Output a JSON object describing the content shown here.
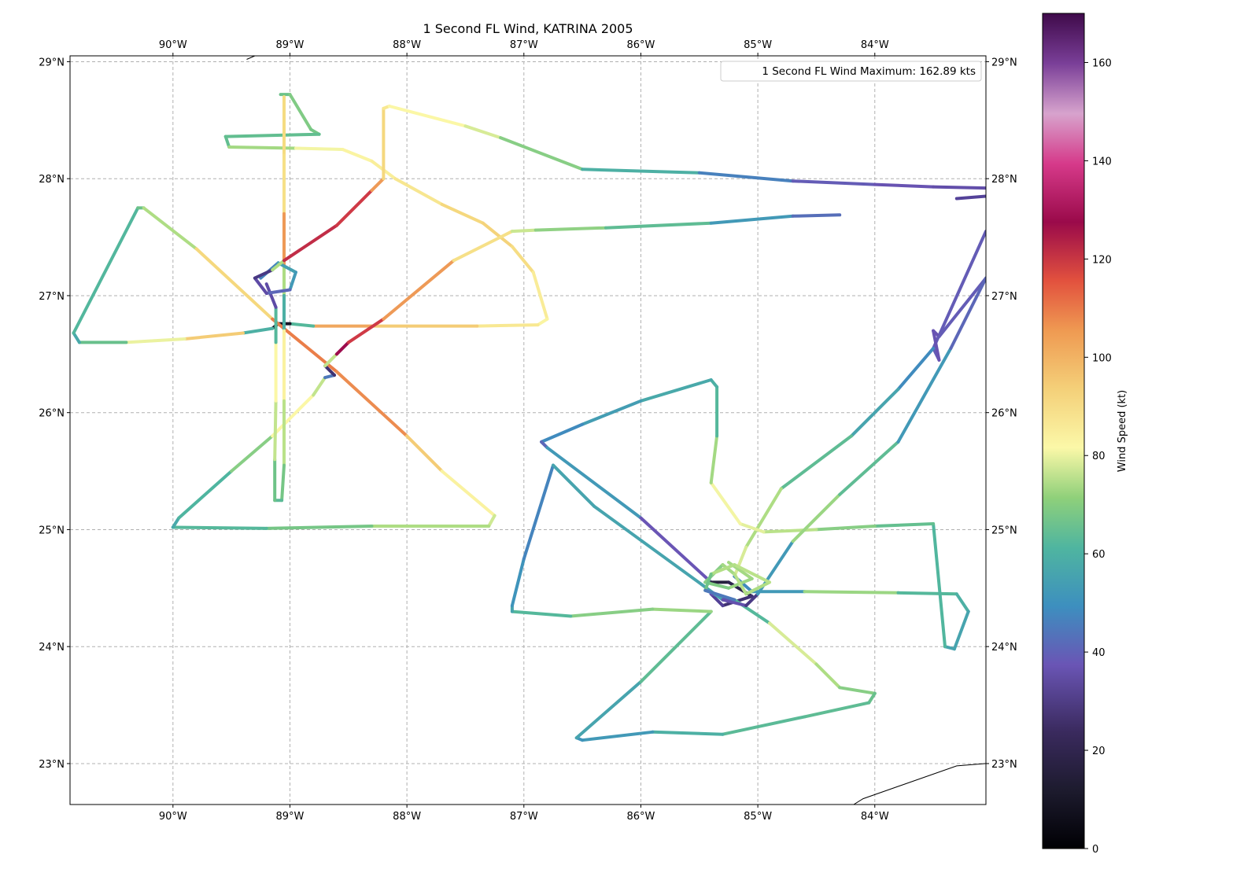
{
  "title": "1 Second FL Wind, KATRINA 2005",
  "legend": {
    "text": "1 Second FL Wind Maximum: 162.89 kts"
  },
  "colorbar": {
    "label": "Wind Speed (kt)",
    "min": 0,
    "max": 170,
    "ticks": [
      "0",
      "20",
      "40",
      "60",
      "80",
      "100",
      "120",
      "140",
      "160"
    ]
  },
  "map": {
    "lon_range": [
      -90.88,
      -83.05
    ],
    "lat_range": [
      22.65,
      29.05
    ],
    "lon_ticks": [
      {
        "value": -90,
        "label": "90°W"
      },
      {
        "value": -89,
        "label": "89°W"
      },
      {
        "value": -88,
        "label": "88°W"
      },
      {
        "value": -87,
        "label": "87°W"
      },
      {
        "value": -86,
        "label": "86°W"
      },
      {
        "value": -85,
        "label": "85°W"
      },
      {
        "value": -84,
        "label": "84°W"
      }
    ],
    "lat_ticks": [
      {
        "value": 23,
        "label": "23°N"
      },
      {
        "value": 24,
        "label": "24°N"
      },
      {
        "value": 25,
        "label": "25°N"
      },
      {
        "value": 26,
        "label": "26°N"
      },
      {
        "value": 27,
        "label": "27°N"
      },
      {
        "value": 28,
        "label": "28°N"
      },
      {
        "value": 29,
        "label": "29°N"
      }
    ],
    "grid": true,
    "coastlines": [
      [
        [
          -89.37,
          29.02
        ],
        [
          -89.3,
          29.05
        ]
      ],
      [
        [
          -84.18,
          22.65
        ],
        [
          -84.1,
          22.7
        ],
        [
          -83.3,
          22.98
        ],
        [
          -83.05,
          23.0
        ]
      ]
    ]
  },
  "chart_data": {
    "type": "scatter",
    "title": "1 Second FL Wind, KATRINA 2005",
    "xlabel": "",
    "ylabel": "",
    "xlim": [
      -90.88,
      -83.05
    ],
    "ylim": [
      22.65,
      29.05
    ],
    "grid": true,
    "legend_position": "top-right",
    "series": [
      {
        "name": "1 Second FL Wind Maximum: 162.89 kts",
        "tracks": [
          {
            "points": [
              [
                -89.08,
                28.72,
                62
              ],
              [
                -89.0,
                28.72,
                65
              ],
              [
                -88.82,
                28.42,
                68
              ],
              [
                -88.75,
                28.38,
                62
              ],
              [
                -89.55,
                28.36,
                60
              ],
              [
                -89.52,
                28.27,
                62
              ],
              [
                -88.95,
                28.26,
                80
              ],
              [
                -88.55,
                28.25,
                82
              ],
              [
                -88.3,
                28.15,
                85
              ],
              [
                -88.1,
                28.0,
                86
              ],
              [
                -87.7,
                27.78,
                90
              ],
              [
                -87.35,
                27.62,
                95
              ],
              [
                -87.1,
                27.42,
                92
              ],
              [
                -86.92,
                27.2,
                90
              ],
              [
                -86.8,
                26.8,
                82
              ],
              [
                -86.88,
                26.75,
                85
              ],
              [
                -87.4,
                26.74,
                90
              ],
              [
                -88.3,
                26.74,
                100
              ],
              [
                -88.8,
                26.74,
                105
              ],
              [
                -89.0,
                26.76,
                10
              ],
              [
                -89.1,
                26.76,
                5
              ],
              [
                -89.15,
                26.72,
                10
              ],
              [
                -89.4,
                26.68,
                100
              ],
              [
                -89.9,
                26.63,
                90
              ],
              [
                -90.4,
                26.6,
                70
              ],
              [
                -90.8,
                26.6,
                55
              ],
              [
                -90.85,
                26.68,
                52
              ],
              [
                -90.3,
                27.75,
                62
              ],
              [
                -90.25,
                27.75,
                65
              ],
              [
                -89.8,
                27.4,
                80
              ],
              [
                -89.15,
                26.8,
                105
              ],
              [
                -88.6,
                26.35,
                115
              ],
              [
                -88.0,
                25.8,
                100
              ],
              [
                -87.7,
                25.5,
                90
              ],
              [
                -87.25,
                25.12,
                78
              ],
              [
                -87.3,
                25.03,
                75
              ],
              [
                -88.3,
                25.03,
                70
              ],
              [
                -89.2,
                25.01,
                60
              ],
              [
                -90.0,
                25.02,
                55
              ],
              [
                -89.95,
                25.1,
                52
              ],
              [
                -89.5,
                25.5,
                60
              ],
              [
                -89.15,
                25.8,
                75
              ],
              [
                -88.8,
                26.15,
                90
              ],
              [
                -88.7,
                26.3,
                60
              ],
              [
                -88.62,
                26.32,
                30
              ],
              [
                -88.7,
                26.4,
                20
              ],
              [
                -88.6,
                26.5,
                130
              ],
              [
                -88.5,
                26.6,
                135
              ],
              [
                -88.2,
                26.8,
                110
              ],
              [
                -87.6,
                27.3,
                100
              ],
              [
                -87.1,
                27.55,
                80
              ],
              [
                -86.9,
                27.56,
                72
              ],
              [
                -86.3,
                27.58,
                65
              ],
              [
                -85.4,
                27.62,
                55
              ],
              [
                -84.7,
                27.68,
                45
              ],
              [
                -84.3,
                27.69,
                42
              ]
            ]
          },
          {
            "points": [
              [
                -89.05,
                28.7,
                88
              ],
              [
                -89.05,
                28.2,
                95
              ],
              [
                -89.05,
                27.7,
                85
              ],
              [
                -89.05,
                27.25,
                125
              ],
              [
                -89.05,
                27.0,
                20
              ],
              [
                -89.05,
                26.7,
                90
              ],
              [
                -89.05,
                26.1,
                78
              ],
              [
                -89.05,
                25.55,
                70
              ],
              [
                -89.07,
                25.25,
                60
              ],
              [
                -89.13,
                25.25,
                58
              ],
              [
                -89.13,
                25.6,
                70
              ],
              [
                -89.12,
                26.1,
                80
              ],
              [
                -89.12,
                26.6,
                85
              ],
              [
                -89.12,
                26.9,
                30
              ],
              [
                -89.2,
                27.1,
                40
              ]
            ]
          },
          {
            "points": [
              [
                -89.25,
                27.15,
                45
              ],
              [
                -89.1,
                27.28,
                48
              ],
              [
                -88.95,
                27.2,
                55
              ],
              [
                -89.0,
                27.05,
                45
              ],
              [
                -89.2,
                27.02,
                40
              ],
              [
                -89.3,
                27.15,
                30
              ],
              [
                -89.15,
                27.22,
                25
              ],
              [
                -89.05,
                27.3,
                120
              ],
              [
                -88.6,
                27.6,
                130
              ],
              [
                -88.3,
                27.9,
                115
              ],
              [
                -88.2,
                28.0,
                95
              ],
              [
                -88.2,
                28.6,
                90
              ],
              [
                -88.15,
                28.62,
                85
              ],
              [
                -87.5,
                28.45,
                80
              ],
              [
                -87.2,
                28.35,
                75
              ],
              [
                -86.5,
                28.08,
                60
              ],
              [
                -85.5,
                28.05,
                50
              ],
              [
                -84.7,
                27.98,
                42
              ],
              [
                -84.0,
                27.95,
                40
              ],
              [
                -83.5,
                27.93,
                38
              ],
              [
                -83.05,
                27.92,
                35
              ]
            ]
          },
          {
            "points": [
              [
                -83.3,
                27.83,
                30
              ],
              [
                -83.05,
                27.85,
                32
              ]
            ]
          },
          {
            "points": [
              [
                -83.05,
                27.55,
                40
              ],
              [
                -83.5,
                26.55,
                42
              ],
              [
                -83.45,
                26.45,
                40
              ],
              [
                -83.5,
                26.7,
                38
              ],
              [
                -83.45,
                26.65,
                40
              ],
              [
                -83.05,
                27.15,
                42
              ]
            ]
          },
          {
            "points": [
              [
                -83.5,
                26.55,
                45
              ],
              [
                -83.8,
                26.2,
                50
              ],
              [
                -84.2,
                25.8,
                55
              ],
              [
                -84.8,
                25.35,
                65
              ],
              [
                -85.1,
                24.85,
                80
              ],
              [
                -85.2,
                24.6,
                75
              ],
              [
                -85.05,
                24.47,
                20
              ],
              [
                -84.6,
                24.47,
                80
              ],
              [
                -83.8,
                24.46,
                60
              ],
              [
                -83.3,
                24.45,
                55
              ],
              [
                -83.2,
                24.3,
                55
              ],
              [
                -83.32,
                23.98,
                50
              ],
              [
                -83.4,
                24.0,
                55
              ],
              [
                -83.5,
                25.05,
                58
              ],
              [
                -84.0,
                25.03,
                65
              ],
              [
                -84.5,
                25.0,
                70
              ],
              [
                -84.95,
                24.98,
                78
              ],
              [
                -85.15,
                25.05,
                80
              ],
              [
                -85.4,
                25.4,
                82
              ],
              [
                -85.35,
                25.8,
                60
              ],
              [
                -85.35,
                26.22,
                55
              ],
              [
                -85.4,
                26.28,
                55
              ],
              [
                -86.0,
                26.1,
                52
              ],
              [
                -86.5,
                25.9,
                50
              ],
              [
                -86.85,
                25.75,
                45
              ],
              [
                -86.8,
                25.7,
                40
              ],
              [
                -86.0,
                25.1,
                60
              ],
              [
                -85.4,
                24.55,
                20
              ],
              [
                -85.25,
                24.55,
                10
              ],
              [
                -85.05,
                24.43,
                30
              ],
              [
                -85.3,
                24.35,
                20
              ],
              [
                -85.4,
                24.45,
                40
              ],
              [
                -85.2,
                24.4,
                35
              ],
              [
                -84.9,
                24.2,
                80
              ],
              [
                -84.5,
                23.85,
                75
              ],
              [
                -84.3,
                23.65,
                70
              ],
              [
                -84.0,
                23.6,
                65
              ],
              [
                -84.05,
                23.52,
                60
              ],
              [
                -84.6,
                23.4,
                60
              ],
              [
                -85.3,
                23.25,
                58
              ],
              [
                -85.9,
                23.27,
                52
              ],
              [
                -86.5,
                23.2,
                48
              ],
              [
                -86.55,
                23.22,
                50
              ],
              [
                -86.0,
                23.7,
                55
              ],
              [
                -85.4,
                24.3,
                65
              ],
              [
                -85.9,
                24.32,
                75
              ],
              [
                -86.6,
                24.26,
                60
              ],
              [
                -87.1,
                24.3,
                55
              ],
              [
                -87.1,
                24.35,
                50
              ],
              [
                -87.0,
                24.75,
                48
              ],
              [
                -86.75,
                25.55,
                45
              ],
              [
                -86.4,
                25.2,
                60
              ],
              [
                -85.3,
                24.4,
                45
              ],
              [
                -85.1,
                24.35,
                30
              ],
              [
                -85.0,
                24.45,
                25
              ],
              [
                -84.7,
                24.9,
                75
              ],
              [
                -84.3,
                25.3,
                65
              ],
              [
                -83.8,
                25.75,
                55
              ],
              [
                -83.35,
                26.55,
                45
              ],
              [
                -83.05,
                27.15,
                40
              ]
            ]
          },
          {
            "points": [
              [
                -85.25,
                24.72,
                70
              ],
              [
                -85.05,
                24.58,
                72
              ],
              [
                -85.25,
                24.5,
                68
              ],
              [
                -85.45,
                24.55,
                65
              ],
              [
                -85.3,
                24.7,
                70
              ],
              [
                -85.2,
                24.62,
                72
              ],
              [
                -85.1,
                24.45,
                75
              ],
              [
                -84.9,
                24.55,
                70
              ],
              [
                -85.2,
                24.7,
                78
              ],
              [
                -85.4,
                24.62,
                68
              ],
              [
                -85.45,
                24.48,
                60
              ],
              [
                -85.2,
                24.4,
                30
              ]
            ]
          }
        ]
      }
    ]
  }
}
